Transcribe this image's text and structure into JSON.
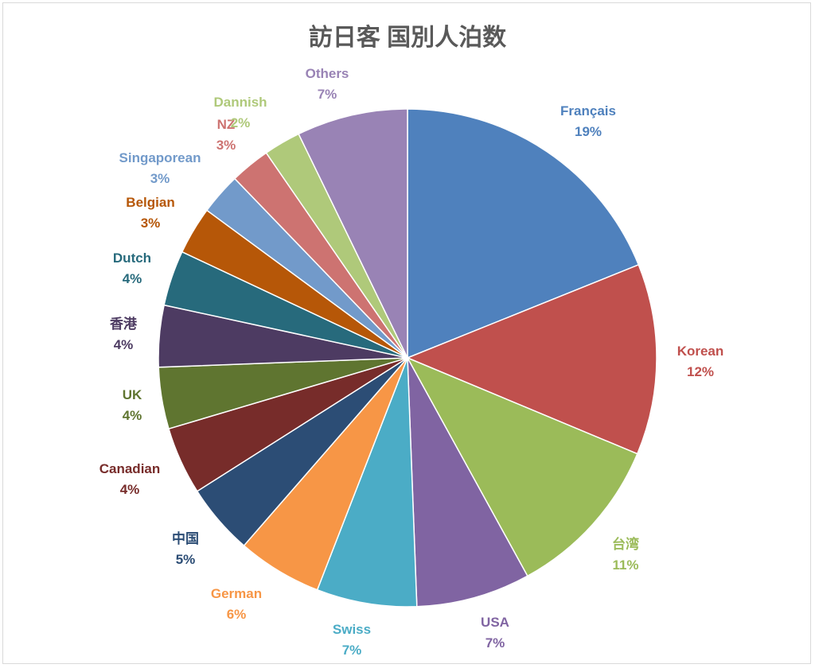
{
  "chart_data": {
    "type": "pie",
    "title": "訪日客 国別人泊数",
    "start_angle": "top, clockwise",
    "legend": "none",
    "slices": [
      {
        "label": "Français",
        "value": 18.9,
        "display": "19%",
        "color": "#4F81BD"
      },
      {
        "label": "Korean",
        "value": 12.4,
        "display": "12%",
        "color": "#C0504D"
      },
      {
        "label": "台湾",
        "value": 10.7,
        "display": "11%",
        "color": "#9BBB59"
      },
      {
        "label": "USA",
        "value": 7.4,
        "display": "7%",
        "color": "#8064A2"
      },
      {
        "label": "Swiss",
        "value": 6.5,
        "display": "7%",
        "color": "#4BACC6"
      },
      {
        "label": "German",
        "value": 5.5,
        "display": "6%",
        "color": "#F79646"
      },
      {
        "label": "中国",
        "value": 4.6,
        "display": "5%",
        "color": "#2C4D75"
      },
      {
        "label": "Canadian",
        "value": 4.4,
        "display": "4%",
        "color": "#772C2A"
      },
      {
        "label": "UK",
        "value": 4.0,
        "display": "4%",
        "color": "#5F7530"
      },
      {
        "label": "香港",
        "value": 4.0,
        "display": "4%",
        "color": "#4D3B62"
      },
      {
        "label": "Dutch",
        "value": 3.6,
        "display": "4%",
        "color": "#276A7C"
      },
      {
        "label": "Belgian",
        "value": 3.1,
        "display": "3%",
        "color": "#B65708"
      },
      {
        "label": "Singaporean",
        "value": 2.7,
        "display": "3%",
        "color": "#729ACA"
      },
      {
        "label": "NZ",
        "value": 2.6,
        "display": "3%",
        "color": "#CD7371"
      },
      {
        "label": "Dannish",
        "value": 2.4,
        "display": "2%",
        "color": "#AFC97A"
      },
      {
        "label": "Others",
        "value": 7.2,
        "display": "7%",
        "color": "#9983B5"
      }
    ]
  }
}
